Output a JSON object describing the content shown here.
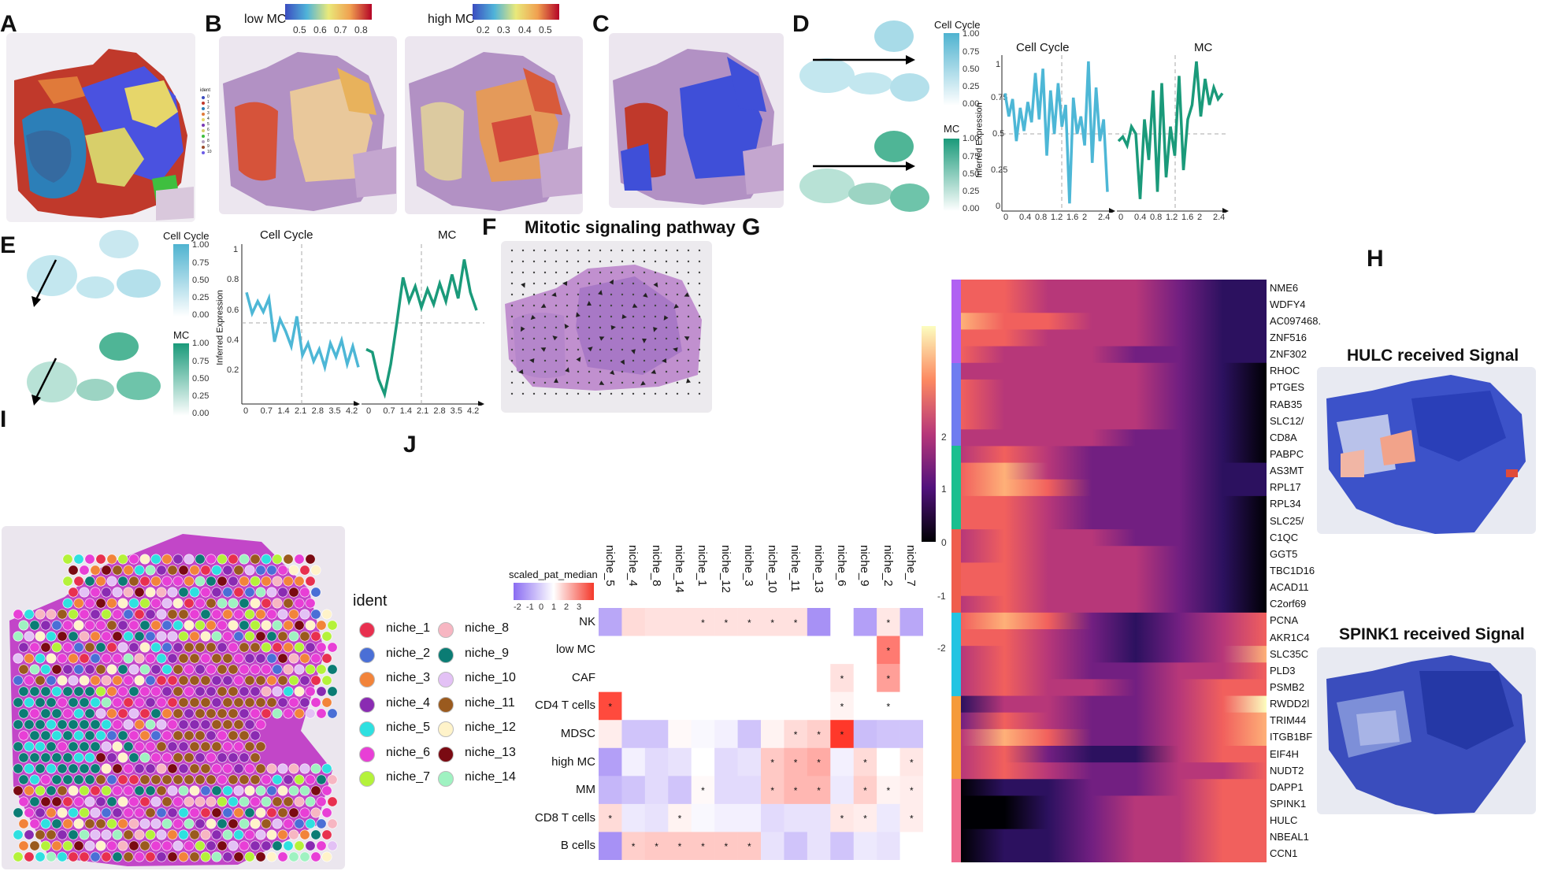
{
  "panel_labels": [
    "A",
    "B",
    "C",
    "D",
    "E",
    "F",
    "G",
    "H",
    "I",
    "J"
  ],
  "panelA": {
    "legend_title": "ident",
    "legend_items": [
      "0",
      "1",
      "2",
      "3",
      "4",
      "5",
      "6",
      "7",
      "8",
      "9",
      "10"
    ]
  },
  "panelB": {
    "low_title": "low MC",
    "low_ticks": [
      "0.5",
      "0.6",
      "0.7",
      "0.8"
    ],
    "high_title": "high MC",
    "high_ticks": [
      "0.2",
      "0.3",
      "0.4",
      "0.5"
    ]
  },
  "panelD": {
    "cc_legend_title": "Cell Cycle",
    "cc_ticks": [
      "1.00",
      "0.75",
      "0.50",
      "0.25",
      "0.00"
    ],
    "mc_legend_title": "MC",
    "mc_ticks": [
      "1.00",
      "0.75",
      "0.50",
      "0.25",
      "0.00"
    ],
    "chart_left_label": "Cell Cycle",
    "chart_right_label": "MC",
    "ylabel": "Inferred Expression",
    "yticks": [
      "1",
      "0.75",
      "0.5",
      "0.25",
      "0"
    ],
    "xticks_left": [
      "0",
      "0.4",
      "0.8",
      "1.2",
      "1.6",
      "2",
      "2.4"
    ],
    "xticks_right": [
      "0",
      "0.4",
      "0.8",
      "1.2",
      "1.6",
      "2",
      "2.4"
    ]
  },
  "panelE": {
    "cc_legend_title": "Cell Cycle",
    "cc_ticks": [
      "1.00",
      "0.75",
      "0.50",
      "0.25",
      "0.00"
    ],
    "mc_legend_title": "MC",
    "mc_ticks": [
      "1.00",
      "0.75",
      "0.50",
      "0.25",
      "0.00"
    ],
    "chart_left_label": "Cell Cycle",
    "chart_right_label": "MC",
    "ylabel": "Inferred Expression",
    "yticks": [
      "1",
      "0.8",
      "0.6",
      "0.4",
      "0.2"
    ],
    "xticks_left": [
      "0",
      "0.7",
      "1.4",
      "2.1",
      "2.8",
      "3.5",
      "4.2"
    ],
    "xticks_right": [
      "0",
      "0.7",
      "1.4",
      "2.1",
      "2.8",
      "3.5",
      "4.2"
    ]
  },
  "panelF": {
    "title": "Mitotic signaling pathway"
  },
  "panelG": {
    "scale_ticks": [
      "2",
      "1",
      "0",
      "-1",
      "-2"
    ],
    "genes": [
      "NME6",
      "WDFY4",
      "AC097468.",
      "ZNF516",
      "ZNF302",
      "RHOC",
      "PTGES",
      "RAB35",
      "SLC12/",
      "CD8A",
      "PABPC",
      "AS3MT",
      "RPL17",
      "RPL34",
      "SLC25/",
      "C1QC",
      "GGT5",
      "TBC1D16",
      "ACAD11",
      "C2orf69",
      "PCNA",
      "AKR1C4",
      "SLC35C",
      "PLD3",
      "PSMB2",
      "RWDD2l",
      "TRIM44",
      "ITGB1BF",
      "EIF4H",
      "NUDT2",
      "DAPP1",
      "SPINK1",
      "HULC",
      "NBEAL1",
      "CCN1"
    ],
    "group_colors": [
      "#b061f2",
      "#6f7cf0",
      "#1bbf8f",
      "#ef5d4d",
      "#22c4e2",
      "#f59a3a",
      "#ef6a8f"
    ]
  },
  "panelH": {
    "title1": "HULC received Signal",
    "title2": "SPINK1 received Signal"
  },
  "panelI": {
    "legend_title": "ident",
    "items": [
      {
        "label": "niche_1",
        "color": "#e8304f"
      },
      {
        "label": "niche_2",
        "color": "#4a6fd6"
      },
      {
        "label": "niche_3",
        "color": "#f2843a"
      },
      {
        "label": "niche_4",
        "color": "#8a2bb2"
      },
      {
        "label": "niche_5",
        "color": "#2ee0e0"
      },
      {
        "label": "niche_6",
        "color": "#e83fd6"
      },
      {
        "label": "niche_7",
        "color": "#b4f23a"
      },
      {
        "label": "niche_8",
        "color": "#f7b6c2"
      },
      {
        "label": "niche_9",
        "color": "#0b7c74"
      },
      {
        "label": "niche_10",
        "color": "#e3c1f5"
      },
      {
        "label": "niche_11",
        "color": "#9a5a1e"
      },
      {
        "label": "niche_12",
        "color": "#fff3c9"
      },
      {
        "label": "niche_13",
        "color": "#7a0a12"
      },
      {
        "label": "niche_14",
        "color": "#9ff2c1"
      }
    ]
  },
  "panelJ": {
    "legend_title": "scaled_pat_median",
    "legend_ticks": [
      "-2",
      "-1",
      "0",
      "1",
      "2",
      "3"
    ],
    "cols": [
      "niche_5",
      "niche_4",
      "niche_8",
      "niche_14",
      "niche_1",
      "niche_12",
      "niche_3",
      "niche_10",
      "niche_11",
      "niche_13",
      "niche_6",
      "niche_9",
      "niche_2",
      "niche_7"
    ],
    "rows": [
      "NK",
      "low MC",
      "CAF",
      "CD4 T cells",
      "MDSC",
      "high MC",
      "MM",
      "CD8 T cells",
      "B cells"
    ],
    "values": [
      [
        -1.2,
        0.6,
        0.5,
        0.5,
        0.5,
        0.5,
        0.5,
        0.5,
        0.5,
        -1.5,
        0.0,
        -1.3,
        0.4,
        -1.2
      ],
      [
        0,
        0,
        0,
        0,
        0,
        0,
        0,
        0,
        0,
        0,
        0,
        0,
        2.2,
        0
      ],
      [
        0,
        0,
        0,
        0,
        0,
        0,
        0,
        0,
        0,
        0,
        0.5,
        0,
        1.6,
        0
      ],
      [
        3.0,
        0,
        0,
        0,
        0,
        0,
        0,
        0,
        0,
        0,
        0.2,
        0,
        0,
        0
      ],
      [
        0.3,
        -0.8,
        -0.8,
        0.1,
        -0.1,
        -0.2,
        -0.8,
        0.2,
        0.6,
        0.8,
        3.3,
        -0.9,
        -0.8,
        -0.8
      ],
      [
        -1.3,
        -0.2,
        -0.5,
        -0.4,
        0.0,
        -0.5,
        -0.4,
        0.9,
        1.2,
        1.4,
        -0.2,
        0.6,
        0.0,
        0.4
      ],
      [
        -1.0,
        -0.8,
        -0.5,
        -0.8,
        0.1,
        -0.5,
        -0.5,
        0.9,
        1.2,
        1.2,
        -0.3,
        0.8,
        0.2,
        0.3
      ],
      [
        0.6,
        -0.3,
        -0.4,
        0.2,
        -0.1,
        -0.2,
        -0.2,
        -0.5,
        -0.4,
        -0.4,
        0.4,
        0.3,
        -0.3,
        0.3
      ],
      [
        -1.5,
        0.8,
        0.9,
        0.9,
        0.9,
        0.9,
        0.9,
        -0.4,
        -0.8,
        -0.4,
        -0.8,
        -0.3,
        -0.4,
        0.0
      ]
    ],
    "stars": [
      [
        0,
        0,
        0,
        0,
        1,
        1,
        1,
        1,
        1,
        0,
        0,
        0,
        1,
        0
      ],
      [
        0,
        0,
        0,
        0,
        0,
        0,
        0,
        0,
        0,
        0,
        0,
        0,
        1,
        0
      ],
      [
        0,
        0,
        0,
        0,
        0,
        0,
        0,
        0,
        0,
        0,
        1,
        0,
        1,
        0
      ],
      [
        1,
        0,
        0,
        0,
        0,
        0,
        0,
        0,
        0,
        0,
        1,
        0,
        1,
        0
      ],
      [
        0,
        0,
        0,
        0,
        0,
        0,
        0,
        0,
        1,
        1,
        1,
        0,
        0,
        0
      ],
      [
        0,
        0,
        0,
        0,
        0,
        0,
        0,
        1,
        1,
        1,
        0,
        1,
        0,
        1
      ],
      [
        0,
        0,
        0,
        0,
        1,
        0,
        0,
        1,
        1,
        1,
        0,
        1,
        1,
        1
      ],
      [
        1,
        0,
        0,
        1,
        0,
        0,
        0,
        0,
        0,
        0,
        1,
        1,
        0,
        1
      ],
      [
        0,
        1,
        1,
        1,
        1,
        1,
        1,
        0,
        0,
        0,
        0,
        0,
        0,
        0
      ]
    ],
    "star_symbol": "*"
  }
}
